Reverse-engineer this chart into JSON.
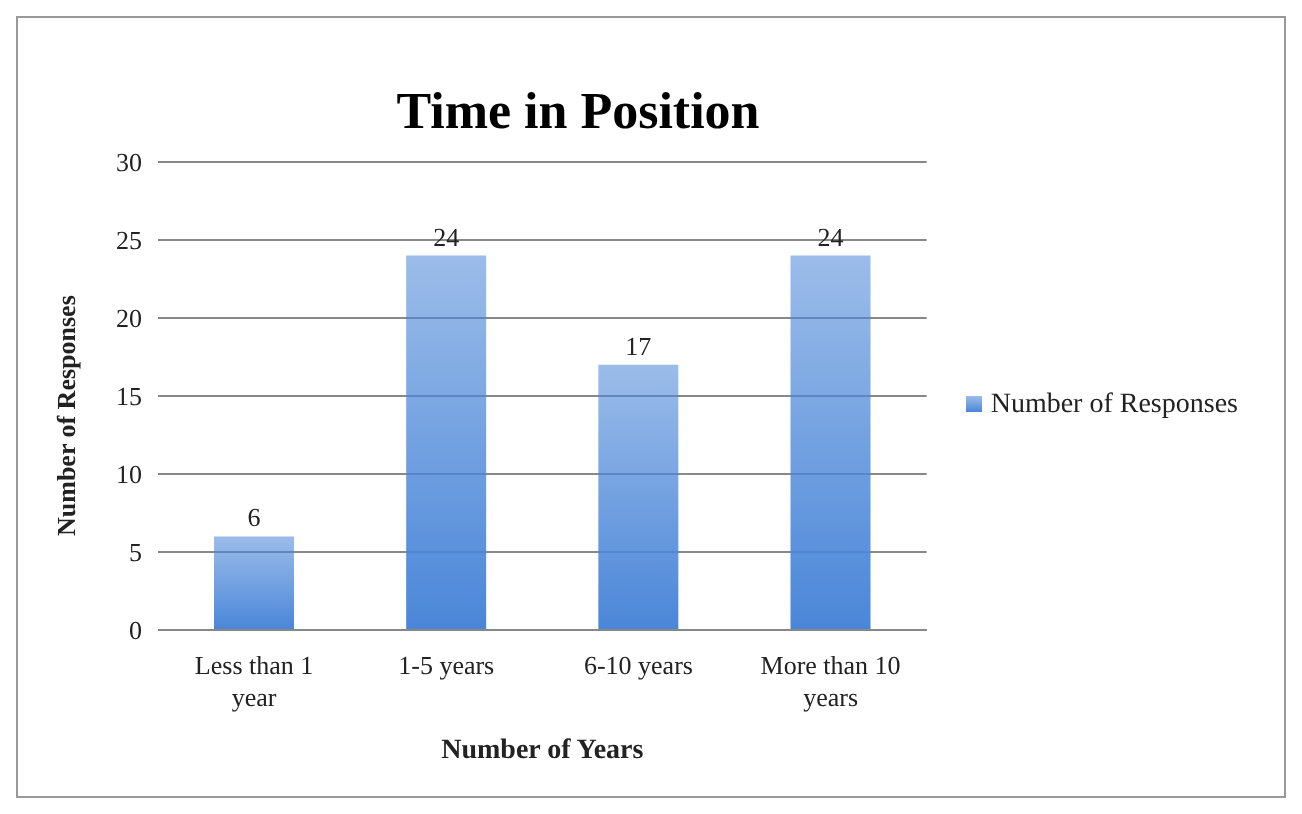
{
  "chart_data": {
    "type": "bar",
    "title": "Time in Position",
    "xlabel": "Number of Years",
    "ylabel": "Number of Responses",
    "categories": [
      "Less than 1 year",
      "1-5 years",
      "6-10 years",
      "More than 10 years"
    ],
    "series": [
      {
        "name": "Number of Responses",
        "color": "#4a86d8",
        "values": [
          6,
          24,
          17,
          24
        ]
      }
    ],
    "ylim": [
      0,
      30
    ],
    "yticks": [
      0,
      5,
      10,
      15,
      20,
      25,
      30
    ],
    "grid": "y",
    "legend": "right",
    "data_labels": true
  }
}
